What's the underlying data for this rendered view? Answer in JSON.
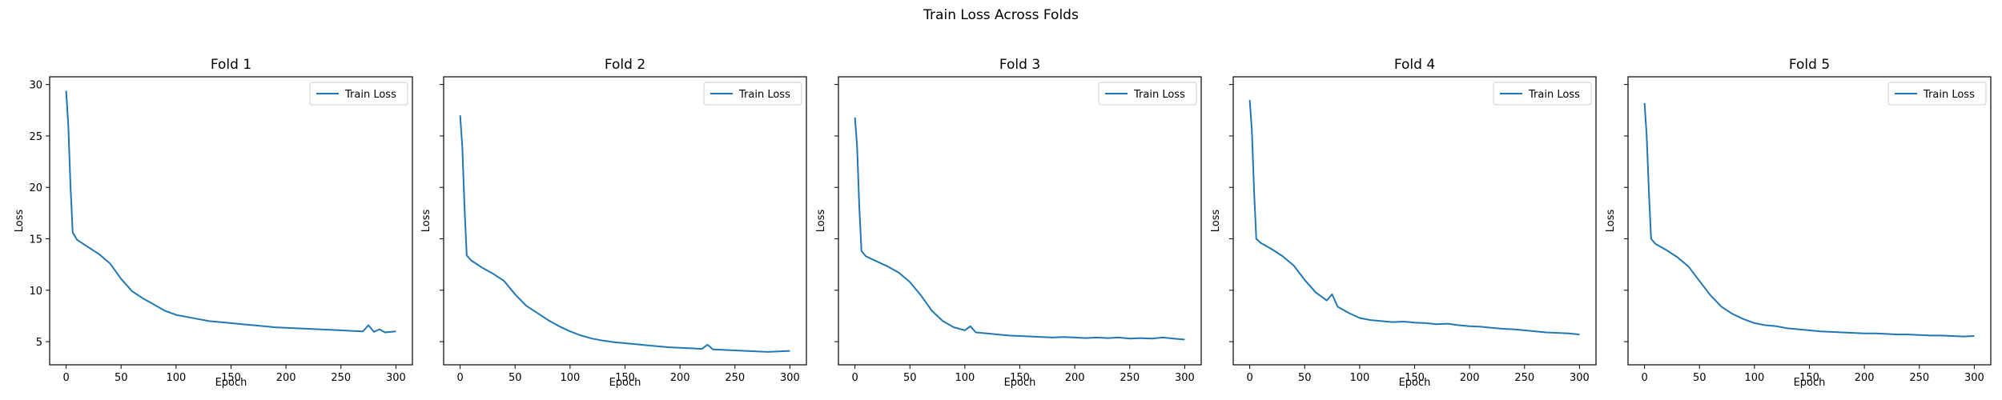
{
  "suptitle": "Train Loss Across Folds",
  "colors": {
    "line": "#1f77b4",
    "axes": "#000000",
    "legend_border": "#cccccc"
  },
  "chart_data": [
    {
      "type": "line",
      "title": "Fold 1",
      "xlabel": "Epoch",
      "ylabel": "Loss",
      "xlim": [
        -15,
        315
      ],
      "ylim": [
        2.75,
        30.75
      ],
      "xticks": [
        0,
        50,
        100,
        150,
        200,
        250,
        300
      ],
      "yticks": [
        5,
        10,
        15,
        20,
        25,
        30
      ],
      "legend_position": "upper right",
      "grid": false,
      "series": [
        {
          "name": "Train Loss",
          "x": [
            0,
            2,
            4,
            6,
            10,
            20,
            30,
            40,
            50,
            60,
            70,
            80,
            90,
            100,
            110,
            120,
            130,
            140,
            150,
            160,
            170,
            180,
            190,
            200,
            210,
            220,
            230,
            240,
            250,
            260,
            270,
            275,
            280,
            285,
            290,
            300
          ],
          "y": [
            29.4,
            26.0,
            20.0,
            15.6,
            14.9,
            14.2,
            13.5,
            12.6,
            11.1,
            9.9,
            9.2,
            8.6,
            8.0,
            7.6,
            7.4,
            7.2,
            7.0,
            6.9,
            6.8,
            6.7,
            6.6,
            6.5,
            6.4,
            6.35,
            6.3,
            6.25,
            6.2,
            6.15,
            6.1,
            6.05,
            6.0,
            6.6,
            5.95,
            6.2,
            5.9,
            6.0
          ]
        }
      ]
    },
    {
      "type": "line",
      "title": "Fold 2",
      "xlabel": "Epoch",
      "ylabel": "Loss",
      "xlim": [
        -15,
        315
      ],
      "ylim": [
        2.75,
        30.75
      ],
      "xticks": [
        0,
        50,
        100,
        150,
        200,
        250,
        300
      ],
      "yticks": [
        5,
        10,
        15,
        20,
        25,
        30
      ],
      "legend_position": "upper right",
      "grid": false,
      "series": [
        {
          "name": "Train Loss",
          "x": [
            0,
            2,
            4,
            6,
            10,
            20,
            30,
            40,
            50,
            60,
            70,
            80,
            90,
            100,
            110,
            120,
            130,
            140,
            150,
            160,
            170,
            180,
            190,
            200,
            210,
            220,
            225,
            230,
            240,
            250,
            260,
            270,
            280,
            290,
            300
          ],
          "y": [
            27.0,
            24.0,
            18.0,
            13.4,
            12.9,
            12.2,
            11.6,
            10.9,
            9.6,
            8.5,
            7.8,
            7.1,
            6.5,
            6.0,
            5.6,
            5.3,
            5.1,
            4.95,
            4.85,
            4.75,
            4.65,
            4.55,
            4.45,
            4.4,
            4.35,
            4.3,
            4.7,
            4.25,
            4.2,
            4.15,
            4.1,
            4.05,
            4.0,
            4.05,
            4.1
          ]
        }
      ]
    },
    {
      "type": "line",
      "title": "Fold 3",
      "xlabel": "Epoch",
      "ylabel": "Loss",
      "xlim": [
        -15,
        315
      ],
      "ylim": [
        2.75,
        30.75
      ],
      "xticks": [
        0,
        50,
        100,
        150,
        200,
        250,
        300
      ],
      "yticks": [
        5,
        10,
        15,
        20,
        25,
        30
      ],
      "legend_position": "upper right",
      "grid": false,
      "series": [
        {
          "name": "Train Loss",
          "x": [
            0,
            2,
            4,
            6,
            10,
            20,
            30,
            40,
            50,
            60,
            70,
            80,
            90,
            100,
            105,
            110,
            120,
            130,
            140,
            150,
            160,
            170,
            180,
            190,
            200,
            210,
            220,
            230,
            240,
            250,
            260,
            270,
            280,
            290,
            300
          ],
          "y": [
            26.8,
            24.0,
            18.0,
            13.8,
            13.3,
            12.8,
            12.3,
            11.7,
            10.8,
            9.5,
            8.0,
            7.0,
            6.4,
            6.1,
            6.5,
            5.9,
            5.8,
            5.7,
            5.6,
            5.55,
            5.5,
            5.45,
            5.4,
            5.45,
            5.4,
            5.35,
            5.4,
            5.35,
            5.4,
            5.3,
            5.35,
            5.3,
            5.4,
            5.3,
            5.2
          ]
        }
      ]
    },
    {
      "type": "line",
      "title": "Fold 4",
      "xlabel": "Epoch",
      "ylabel": "Loss",
      "xlim": [
        -15,
        315
      ],
      "ylim": [
        2.75,
        30.75
      ],
      "xticks": [
        0,
        50,
        100,
        150,
        200,
        250,
        300
      ],
      "yticks": [
        5,
        10,
        15,
        20,
        25,
        30
      ],
      "legend_position": "upper right",
      "grid": false,
      "series": [
        {
          "name": "Train Loss",
          "x": [
            0,
            2,
            4,
            6,
            10,
            20,
            30,
            40,
            50,
            60,
            70,
            75,
            80,
            90,
            100,
            110,
            120,
            130,
            140,
            150,
            160,
            170,
            180,
            190,
            200,
            210,
            220,
            230,
            240,
            250,
            260,
            270,
            280,
            290,
            300
          ],
          "y": [
            28.5,
            25.5,
            19.5,
            15.0,
            14.6,
            14.0,
            13.3,
            12.4,
            11.0,
            9.8,
            9.0,
            9.6,
            8.4,
            7.8,
            7.3,
            7.1,
            7.0,
            6.9,
            6.95,
            6.85,
            6.8,
            6.7,
            6.75,
            6.6,
            6.5,
            6.45,
            6.35,
            6.25,
            6.2,
            6.1,
            6.0,
            5.9,
            5.85,
            5.8,
            5.7
          ]
        }
      ]
    },
    {
      "type": "line",
      "title": "Fold 5",
      "xlabel": "Epoch",
      "ylabel": "Loss",
      "xlim": [
        -15,
        315
      ],
      "ylim": [
        2.75,
        30.75
      ],
      "xticks": [
        0,
        50,
        100,
        150,
        200,
        250,
        300
      ],
      "yticks": [
        5,
        10,
        15,
        20,
        25,
        30
      ],
      "legend_position": "upper right",
      "grid": false,
      "series": [
        {
          "name": "Train Loss",
          "x": [
            0,
            2,
            4,
            6,
            10,
            20,
            30,
            40,
            50,
            60,
            70,
            80,
            90,
            100,
            110,
            120,
            130,
            140,
            150,
            160,
            170,
            180,
            190,
            200,
            210,
            220,
            230,
            240,
            250,
            260,
            270,
            280,
            290,
            300
          ],
          "y": [
            28.2,
            25.0,
            19.5,
            15.0,
            14.5,
            13.9,
            13.2,
            12.3,
            10.9,
            9.5,
            8.4,
            7.7,
            7.2,
            6.8,
            6.6,
            6.5,
            6.3,
            6.2,
            6.1,
            6.0,
            5.95,
            5.9,
            5.85,
            5.8,
            5.8,
            5.75,
            5.7,
            5.7,
            5.65,
            5.6,
            5.6,
            5.55,
            5.5,
            5.55
          ]
        }
      ]
    }
  ]
}
